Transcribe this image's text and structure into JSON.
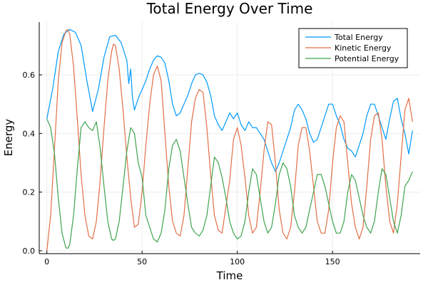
{
  "colors": {
    "total": "#009AFA",
    "kinetic": "#E26F46",
    "potential": "#3EA44E",
    "grid": "#EBEBEB",
    "axis": "#000000"
  },
  "chart_data": {
    "type": "line",
    "title": "Total Energy Over Time",
    "xlabel": "Time",
    "ylabel": "Energy",
    "xlim": [
      -4,
      196
    ],
    "ylim": [
      -0.01,
      0.78
    ],
    "xticks": [
      0,
      50,
      100,
      150
    ],
    "xtick_labels": [
      "0",
      "50",
      "100",
      "150"
    ],
    "yticks": [
      0.0,
      0.2,
      0.4,
      0.6
    ],
    "ytick_labels": [
      "0.0",
      "0.2",
      "0.4",
      "0.6"
    ],
    "grid": true,
    "legend_position": "top-right",
    "series": [
      {
        "name": "Total Energy",
        "color_key": "total",
        "x": [
          0,
          3,
          6,
          9,
          12,
          15,
          18,
          21,
          24,
          27,
          30,
          33,
          36,
          39,
          42,
          43,
          44,
          45,
          46,
          48,
          50,
          52,
          54,
          56,
          58,
          60,
          62,
          64,
          66,
          68,
          70,
          72,
          74,
          76,
          78,
          80,
          82,
          84,
          86,
          88,
          90,
          92,
          94,
          96,
          98,
          100,
          102,
          104,
          106,
          108,
          110,
          112,
          114,
          116,
          118,
          120,
          122,
          124,
          126,
          128,
          130,
          132,
          134,
          136,
          138,
          140,
          142,
          144,
          146,
          148,
          150,
          152,
          154,
          156,
          158,
          160,
          162,
          164,
          166,
          168,
          170,
          172,
          174,
          176,
          178,
          180,
          182,
          184,
          186,
          188,
          190,
          192
        ],
        "y": [
          0.45,
          0.55,
          0.68,
          0.74,
          0.755,
          0.745,
          0.7,
          0.58,
          0.475,
          0.55,
          0.66,
          0.73,
          0.735,
          0.71,
          0.65,
          0.57,
          0.62,
          0.52,
          0.48,
          0.52,
          0.55,
          0.58,
          0.62,
          0.65,
          0.665,
          0.66,
          0.64,
          0.58,
          0.5,
          0.46,
          0.47,
          0.5,
          0.53,
          0.57,
          0.6,
          0.605,
          0.6,
          0.575,
          0.53,
          0.46,
          0.43,
          0.41,
          0.44,
          0.47,
          0.45,
          0.47,
          0.43,
          0.41,
          0.44,
          0.42,
          0.42,
          0.4,
          0.38,
          0.34,
          0.3,
          0.27,
          0.3,
          0.34,
          0.38,
          0.42,
          0.48,
          0.5,
          0.48,
          0.45,
          0.4,
          0.37,
          0.38,
          0.42,
          0.46,
          0.5,
          0.5,
          0.46,
          0.43,
          0.38,
          0.35,
          0.34,
          0.32,
          0.36,
          0.4,
          0.46,
          0.5,
          0.5,
          0.46,
          0.42,
          0.38,
          0.45,
          0.51,
          0.52,
          0.45,
          0.4,
          0.33,
          0.41
        ]
      },
      {
        "name": "Kinetic Energy",
        "color_key": "kinetic",
        "x": [
          0,
          2,
          4,
          6,
          8,
          10,
          11,
          12,
          14,
          16,
          18,
          20,
          22,
          24,
          26,
          28,
          30,
          32,
          34,
          35,
          36,
          38,
          40,
          42,
          44,
          46,
          48,
          50,
          52,
          54,
          56,
          58,
          60,
          62,
          64,
          66,
          68,
          70,
          72,
          74,
          76,
          78,
          80,
          82,
          84,
          86,
          88,
          90,
          92,
          94,
          96,
          98,
          100,
          102,
          104,
          106,
          108,
          110,
          112,
          114,
          116,
          118,
          120,
          122,
          124,
          126,
          128,
          130,
          132,
          134,
          136,
          138,
          140,
          142,
          144,
          146,
          148,
          150,
          152,
          154,
          156,
          158,
          160,
          162,
          164,
          166,
          168,
          170,
          172,
          174,
          176,
          178,
          180,
          182,
          184,
          186,
          188,
          190,
          192
        ],
        "y": [
          0.0,
          0.12,
          0.35,
          0.58,
          0.71,
          0.75,
          0.755,
          0.74,
          0.63,
          0.45,
          0.26,
          0.12,
          0.05,
          0.04,
          0.1,
          0.24,
          0.42,
          0.58,
          0.68,
          0.705,
          0.7,
          0.62,
          0.48,
          0.32,
          0.18,
          0.08,
          0.09,
          0.2,
          0.36,
          0.5,
          0.6,
          0.63,
          0.58,
          0.4,
          0.22,
          0.1,
          0.06,
          0.05,
          0.12,
          0.28,
          0.44,
          0.52,
          0.55,
          0.54,
          0.42,
          0.26,
          0.12,
          0.07,
          0.06,
          0.15,
          0.24,
          0.38,
          0.42,
          0.36,
          0.25,
          0.12,
          0.06,
          0.08,
          0.2,
          0.34,
          0.44,
          0.43,
          0.3,
          0.14,
          0.06,
          0.04,
          0.08,
          0.2,
          0.36,
          0.42,
          0.42,
          0.34,
          0.22,
          0.1,
          0.06,
          0.06,
          0.14,
          0.3,
          0.42,
          0.46,
          0.44,
          0.3,
          0.16,
          0.08,
          0.04,
          0.08,
          0.22,
          0.38,
          0.46,
          0.47,
          0.38,
          0.22,
          0.1,
          0.06,
          0.16,
          0.32,
          0.48,
          0.52,
          0.44
        ]
      },
      {
        "name": "Potential Energy",
        "color_key": "potential",
        "x": [
          0,
          2,
          4,
          6,
          8,
          10,
          11,
          12,
          14,
          16,
          18,
          20,
          22,
          24,
          26,
          28,
          30,
          32,
          34,
          35,
          36,
          38,
          40,
          42,
          44,
          46,
          48,
          50,
          52,
          54,
          56,
          58,
          60,
          62,
          64,
          66,
          68,
          70,
          72,
          74,
          76,
          78,
          80,
          82,
          84,
          86,
          88,
          90,
          92,
          94,
          96,
          98,
          100,
          102,
          104,
          106,
          108,
          110,
          112,
          114,
          116,
          118,
          120,
          122,
          124,
          126,
          128,
          130,
          132,
          134,
          136,
          138,
          140,
          142,
          144,
          146,
          148,
          150,
          152,
          154,
          156,
          158,
          160,
          162,
          164,
          166,
          168,
          170,
          172,
          174,
          176,
          178,
          180,
          182,
          184,
          186,
          188,
          190,
          192
        ],
        "y": [
          0.45,
          0.42,
          0.33,
          0.18,
          0.06,
          0.01,
          0.008,
          0.02,
          0.12,
          0.28,
          0.42,
          0.44,
          0.42,
          0.41,
          0.44,
          0.35,
          0.22,
          0.1,
          0.04,
          0.035,
          0.04,
          0.1,
          0.22,
          0.34,
          0.42,
          0.4,
          0.3,
          0.25,
          0.12,
          0.08,
          0.04,
          0.03,
          0.06,
          0.14,
          0.28,
          0.36,
          0.38,
          0.34,
          0.25,
          0.16,
          0.08,
          0.06,
          0.05,
          0.07,
          0.12,
          0.22,
          0.32,
          0.3,
          0.25,
          0.18,
          0.1,
          0.06,
          0.04,
          0.05,
          0.1,
          0.2,
          0.28,
          0.26,
          0.18,
          0.1,
          0.06,
          0.08,
          0.16,
          0.26,
          0.3,
          0.28,
          0.22,
          0.12,
          0.08,
          0.06,
          0.08,
          0.14,
          0.2,
          0.26,
          0.26,
          0.22,
          0.16,
          0.1,
          0.06,
          0.06,
          0.1,
          0.2,
          0.26,
          0.24,
          0.18,
          0.12,
          0.08,
          0.06,
          0.1,
          0.2,
          0.28,
          0.26,
          0.18,
          0.1,
          0.06,
          0.12,
          0.22,
          0.24,
          0.27
        ]
      }
    ]
  }
}
